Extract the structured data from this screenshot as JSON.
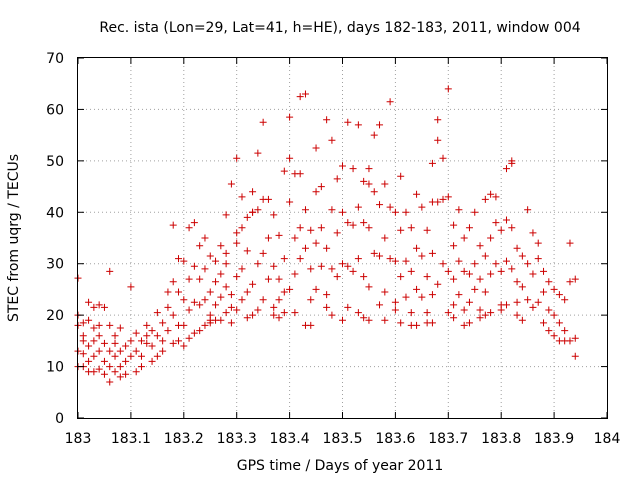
{
  "chart_data": {
    "type": "scatter",
    "title": "Rec. ista (Lon=29, Lat=41, h=HE), days 182-183, 2011, window 004",
    "xlabel": "GPS time / Days of year 2011",
    "ylabel": "STEC from uqrg / TECUs",
    "xlim": [
      183,
      184
    ],
    "ylim": [
      0,
      70
    ],
    "xticks": [
      "183",
      "183.1",
      "183.2",
      "183.3",
      "183.4",
      "183.5",
      "183.6",
      "183.7",
      "183.8",
      "183.9",
      "184"
    ],
    "yticks": [
      "0",
      "10",
      "20",
      "30",
      "40",
      "50",
      "60",
      "70"
    ],
    "grid": true,
    "marker": "+",
    "color": "#cc0000",
    "x": [
      183.0,
      183.0,
      183.0,
      183.0,
      183.0,
      183.01,
      183.01,
      183.01,
      183.01,
      183.01,
      183.02,
      183.02,
      183.02,
      183.02,
      183.02,
      183.03,
      183.03,
      183.03,
      183.03,
      183.03,
      183.04,
      183.04,
      183.04,
      183.04,
      183.04,
      183.05,
      183.05,
      183.05,
      183.05,
      183.06,
      183.06,
      183.06,
      183.06,
      183.06,
      183.07,
      183.07,
      183.07,
      183.07,
      183.08,
      183.08,
      183.08,
      183.08,
      183.09,
      183.09,
      183.09,
      183.1,
      183.1,
      183.1,
      183.11,
      183.11,
      183.11,
      183.12,
      183.12,
      183.12,
      183.13,
      183.13,
      183.13,
      183.14,
      183.14,
      183.14,
      183.15,
      183.15,
      183.15,
      183.16,
      183.16,
      183.16,
      183.17,
      183.17,
      183.17,
      183.18,
      183.18,
      183.18,
      183.18,
      183.19,
      183.19,
      183.19,
      183.19,
      183.2,
      183.2,
      183.2,
      183.2,
      183.21,
      183.21,
      183.21,
      183.21,
      183.22,
      183.22,
      183.22,
      183.22,
      183.23,
      183.23,
      183.23,
      183.23,
      183.24,
      183.24,
      183.24,
      183.24,
      183.25,
      183.25,
      183.25,
      183.25,
      183.25,
      183.26,
      183.26,
      183.26,
      183.26,
      183.27,
      183.27,
      183.27,
      183.27,
      183.28,
      183.28,
      183.28,
      183.28,
      183.28,
      183.29,
      183.29,
      183.29,
      183.29,
      183.3,
      183.3,
      183.3,
      183.3,
      183.3,
      183.31,
      183.31,
      183.31,
      183.31,
      183.32,
      183.32,
      183.32,
      183.32,
      183.33,
      183.33,
      183.33,
      183.33,
      183.34,
      183.34,
      183.34,
      183.34,
      183.35,
      183.35,
      183.35,
      183.35,
      183.36,
      183.36,
      183.36,
      183.37,
      183.37,
      183.37,
      183.37,
      183.38,
      183.38,
      183.38,
      183.38,
      183.39,
      183.39,
      183.39,
      183.39,
      183.4,
      183.4,
      183.4,
      183.4,
      183.41,
      183.41,
      183.41,
      183.41,
      183.42,
      183.42,
      183.42,
      183.43,
      183.43,
      183.43,
      183.43,
      183.44,
      183.44,
      183.44,
      183.44,
      183.45,
      183.45,
      183.45,
      183.45,
      183.46,
      183.46,
      183.46,
      183.47,
      183.47,
      183.47,
      183.47,
      183.48,
      183.48,
      183.48,
      183.48,
      183.49,
      183.49,
      183.49,
      183.5,
      183.5,
      183.5,
      183.5,
      183.51,
      183.51,
      183.51,
      183.51,
      183.52,
      183.52,
      183.52,
      183.53,
      183.53,
      183.53,
      183.53,
      183.54,
      183.54,
      183.54,
      183.54,
      183.55,
      183.55,
      183.55,
      183.55,
      183.56,
      183.56,
      183.56,
      183.57,
      183.57,
      183.57,
      183.57,
      183.58,
      183.58,
      183.58,
      183.58,
      183.59,
      183.59,
      183.59,
      183.6,
      183.6,
      183.6,
      183.6,
      183.61,
      183.61,
      183.61,
      183.61,
      183.62,
      183.62,
      183.62,
      183.63,
      183.63,
      183.63,
      183.63,
      183.64,
      183.64,
      183.64,
      183.64,
      183.65,
      183.65,
      183.65,
      183.66,
      183.66,
      183.66,
      183.66,
      183.67,
      183.67,
      183.67,
      183.67,
      183.68,
      183.68,
      183.68,
      183.68,
      183.69,
      183.69,
      183.69,
      183.7,
      183.7,
      183.7,
      183.7,
      183.71,
      183.71,
      183.71,
      183.71,
      183.72,
      183.72,
      183.72,
      183.73,
      183.73,
      183.73,
      183.73,
      183.74,
      183.74,
      183.74,
      183.74,
      183.75,
      183.75,
      183.75,
      183.76,
      183.76,
      183.76,
      183.76,
      183.77,
      183.77,
      183.77,
      183.77,
      183.78,
      183.78,
      183.78,
      183.78,
      183.79,
      183.79,
      183.79,
      183.8,
      183.8,
      183.8,
      183.8,
      183.81,
      183.81,
      183.81,
      183.81,
      183.82,
      183.82,
      183.82,
      183.83,
      183.83,
      183.83,
      183.83,
      183.84,
      183.84,
      183.84,
      183.85,
      183.85,
      183.85,
      183.86,
      183.86,
      183.86,
      183.87,
      183.87,
      183.87,
      183.88,
      183.88,
      183.88,
      183.89,
      183.89,
      183.89,
      183.9,
      183.9,
      183.9,
      183.91,
      183.91,
      183.91,
      183.92,
      183.92,
      183.92,
      183.93,
      183.93,
      183.93,
      183.94,
      183.94,
      183.94,
      183.67,
      183.71,
      183.82,
      183.55,
      183.42,
      183.33
    ],
    "y": [
      27.2,
      20.0,
      18.0,
      13.0,
      10.0,
      15.0,
      12.5,
      10.0,
      18.5,
      16.0,
      22.5,
      14.0,
      11.0,
      9.0,
      19.0,
      21.5,
      15.0,
      12.0,
      9.0,
      17.5,
      22.0,
      16.0,
      13.0,
      9.5,
      18.0,
      14.5,
      11.0,
      8.5,
      21.5,
      18.0,
      13.0,
      10.0,
      7.0,
      28.5,
      16.0,
      12.0,
      9.0,
      14.5,
      17.5,
      13.0,
      10.0,
      8.0,
      14.0,
      11.0,
      8.5,
      25.5,
      15.0,
      12.0,
      9.0,
      16.5,
      13.0,
      10.0,
      15.0,
      12.0,
      14.5,
      18.0,
      16.0,
      11.0,
      17.0,
      14.0,
      12.0,
      20.5,
      16.0,
      13.0,
      18.5,
      15.0,
      21.5,
      24.5,
      17.0,
      14.5,
      37.5,
      26.5,
      20.0,
      15.0,
      31.0,
      24.5,
      18.0,
      14.0,
      30.5,
      23.0,
      18.0,
      15.5,
      37.0,
      27.0,
      21.0,
      16.5,
      38.0,
      29.5,
      22.5,
      17.0,
      33.5,
      27.0,
      22.0,
      18.0,
      35.0,
      29.0,
      23.0,
      19.0,
      31.5,
      24.5,
      20.0,
      18.5,
      30.5,
      26.5,
      22.0,
      19.0,
      33.5,
      28.0,
      23.5,
      19.0,
      39.5,
      32.0,
      25.5,
      20.5,
      30.0,
      24.0,
      21.5,
      18.5,
      45.5,
      36.0,
      27.5,
      21.0,
      34.0,
      50.5,
      43.0,
      37.0,
      29.0,
      23.0,
      39.0,
      32.5,
      24.5,
      19.5,
      44.0,
      40.0,
      26.0,
      20.0,
      51.5,
      40.5,
      30.0,
      21.0,
      57.5,
      42.5,
      32.0,
      23.0,
      42.5,
      35.0,
      27.0,
      20.0,
      39.5,
      29.5,
      21.5,
      35.5,
      27.0,
      23.0,
      19.5,
      48.0,
      31.0,
      24.5,
      20.5,
      58.5,
      50.5,
      42.0,
      25.0,
      47.5,
      35.0,
      28.0,
      20.5,
      47.5,
      37.0,
      31.0,
      18.0,
      63.0,
      40.5,
      33.0,
      36.5,
      29.0,
      23.0,
      18.0,
      52.5,
      44.0,
      34.0,
      25.0,
      45.0,
      37.0,
      29.5,
      21.5,
      58.0,
      33.0,
      24.0,
      54.0,
      40.5,
      29.0,
      20.0,
      46.5,
      36.0,
      27.5,
      19.0,
      49.0,
      40.0,
      30.0,
      57.5,
      38.0,
      29.5,
      21.5,
      48.5,
      37.5,
      28.5,
      20.5,
      57.0,
      41.0,
      31.0,
      46.0,
      38.0,
      27.5,
      19.5,
      48.5,
      37.0,
      25.5,
      19.0,
      55.0,
      44.0,
      32.0,
      22.0,
      57.0,
      41.5,
      31.5,
      45.5,
      35.0,
      24.5,
      19.0,
      61.5,
      41.0,
      31.0,
      22.5,
      40.0,
      30.5,
      21.0,
      47.0,
      36.5,
      27.5,
      18.5,
      40.0,
      30.5,
      23.5,
      18.0,
      37.0,
      28.5,
      20.5,
      43.5,
      33.0,
      25.0,
      18.0,
      41.0,
      31.5,
      23.5,
      18.5,
      36.5,
      27.5,
      20.5,
      42.0,
      32.0,
      24.0,
      18.5,
      58.0,
      54.0,
      42.0,
      26.0,
      50.5,
      42.5,
      30.0,
      20.5,
      64.0,
      43.0,
      28.5,
      33.5,
      27.0,
      22.0,
      19.5,
      40.5,
      30.5,
      24.0,
      18.0,
      35.0,
      28.5,
      21.0,
      37.0,
      28.0,
      22.5,
      18.5,
      40.0,
      30.0,
      25.0,
      19.5,
      33.5,
      27.0,
      21.0,
      42.5,
      31.5,
      24.5,
      20.0,
      43.5,
      35.0,
      28.0,
      20.5,
      43.0,
      38.0,
      30.0,
      22.0,
      36.5,
      28.5,
      21.0,
      48.5,
      38.5,
      30.5,
      22.0,
      49.5,
      37.0,
      29.0,
      22.5,
      33.0,
      26.5,
      20.0,
      31.5,
      25.5,
      19.0,
      40.5,
      30.0,
      23.0,
      36.0,
      28.0,
      21.5,
      34.0,
      31.0,
      22.5,
      28.5,
      24.5,
      18.5,
      26.5,
      21.0,
      17.0,
      25.0,
      20.0,
      16.0,
      24.0,
      18.5,
      15.0,
      23.0,
      17.0,
      15.0,
      34.0,
      26.5,
      15.0,
      27.0,
      15.5,
      12.0,
      49.5,
      37.5,
      50.0,
      45.5,
      62.5,
      40.0
    ]
  }
}
